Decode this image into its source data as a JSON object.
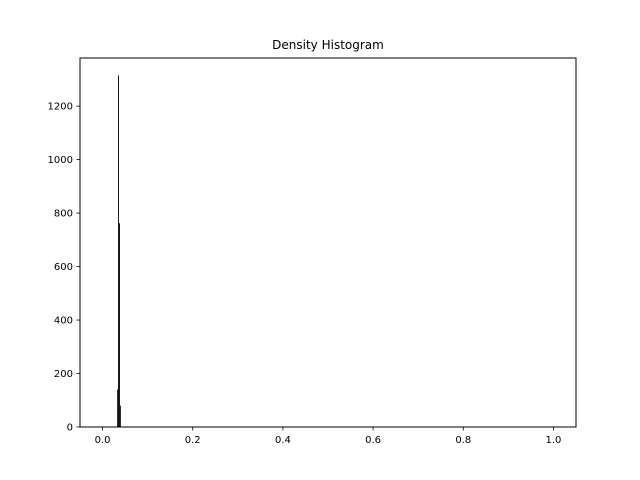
{
  "chart_data": {
    "type": "bar",
    "title": "Density Histogram",
    "xlabel": "",
    "ylabel": "",
    "xlim": [
      -0.05,
      1.05
    ],
    "ylim": [
      0,
      1380
    ],
    "x_ticks": [
      0.0,
      0.2,
      0.4,
      0.6,
      0.8,
      1.0
    ],
    "x_tick_labels": [
      "0.0",
      "0.2",
      "0.4",
      "0.6",
      "0.8",
      "1.0"
    ],
    "y_ticks": [
      0,
      200,
      400,
      600,
      800,
      1000,
      1200
    ],
    "y_tick_labels": [
      "0",
      "200",
      "400",
      "600",
      "800",
      "1000",
      "1200"
    ],
    "grid": false,
    "bar_color": "#000000",
    "bins": [
      {
        "x0": 0.0305,
        "x1": 0.0325,
        "value": 0
      },
      {
        "x0": 0.0325,
        "x1": 0.0345,
        "value": 140
      },
      {
        "x0": 0.0345,
        "x1": 0.0365,
        "value": 1315
      },
      {
        "x0": 0.0365,
        "x1": 0.0385,
        "value": 762
      },
      {
        "x0": 0.0385,
        "x1": 0.0405,
        "value": 80
      }
    ]
  }
}
